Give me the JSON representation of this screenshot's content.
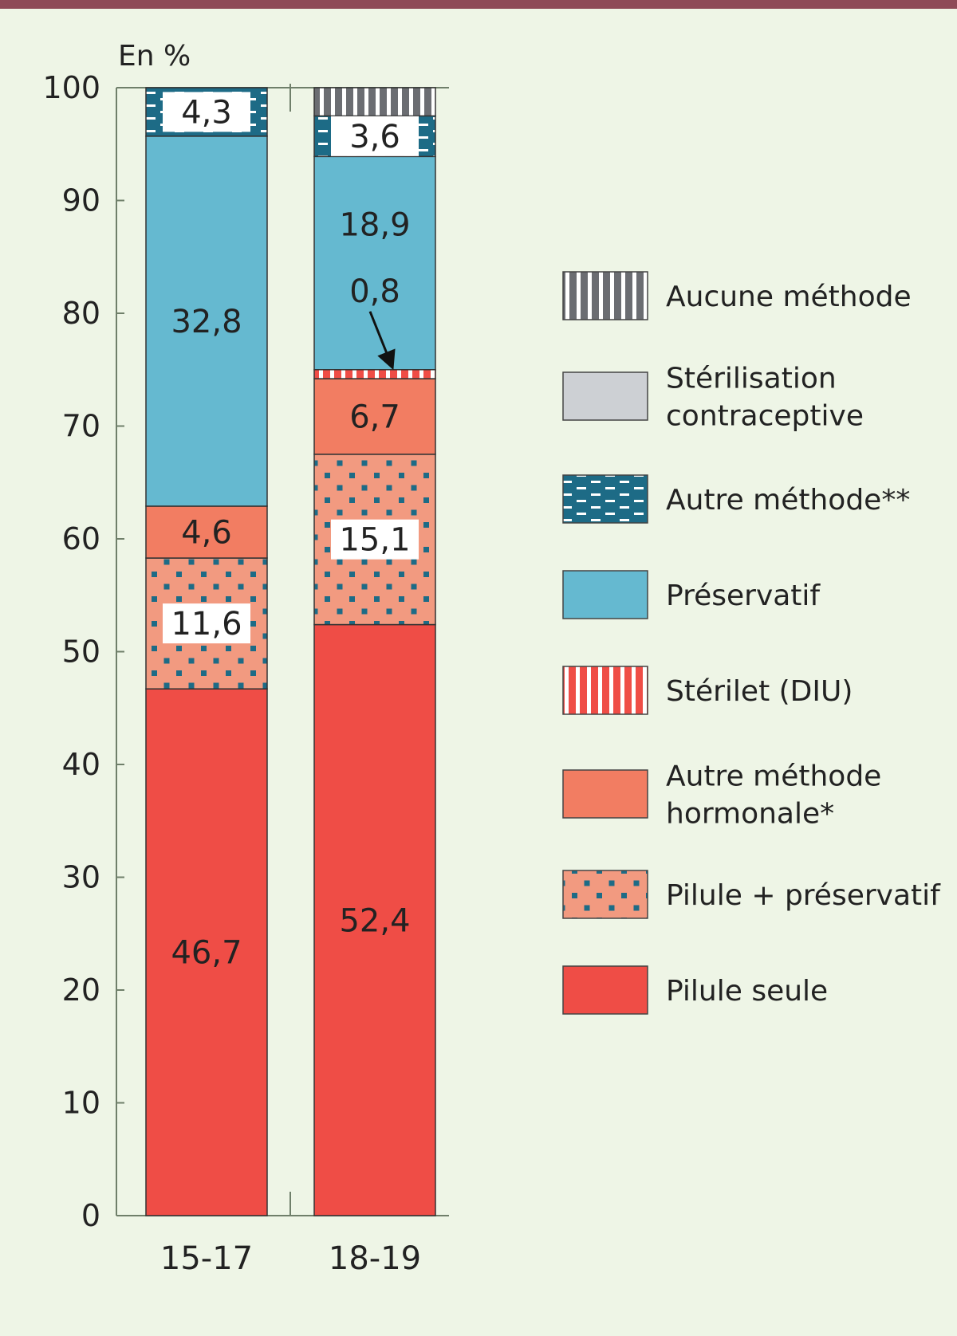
{
  "chart_data": {
    "type": "bar",
    "stacked": true,
    "unit_label": "En %",
    "ylim": [
      0,
      100
    ],
    "yticks": [
      0,
      10,
      20,
      30,
      40,
      50,
      60,
      70,
      80,
      90,
      100
    ],
    "grid": false,
    "legend_position": "right",
    "categories": [
      "15-17",
      "18-19"
    ],
    "series": [
      {
        "name": "Pilule seule",
        "values": [
          46.7,
          52.4
        ],
        "labels": [
          "46,7",
          "52,4"
        ],
        "color": "#ef4d46",
        "pattern": "solid"
      },
      {
        "name": "Pilule + préservatif",
        "values": [
          11.6,
          15.1
        ],
        "labels": [
          "11,6",
          "15,1"
        ],
        "color": "#f29a80",
        "pattern": "dots"
      },
      {
        "name": "Autre méthode hormonale*",
        "values": [
          4.6,
          6.7
        ],
        "labels": [
          "4,6",
          "6,7"
        ],
        "color": "#f27d62",
        "pattern": "solid"
      },
      {
        "name": "Stérilet (DIU)",
        "values": [
          0,
          0.8
        ],
        "labels": [
          "",
          "0,8"
        ],
        "color": "#ef4d46",
        "pattern": "vstripes-white"
      },
      {
        "name": "Préservatif",
        "values": [
          32.8,
          18.9
        ],
        "labels": [
          "32,8",
          "18,9"
        ],
        "color": "#65b9d0",
        "pattern": "solid"
      },
      {
        "name": "Autre méthode**",
        "values": [
          4.3,
          3.6
        ],
        "labels": [
          "4,3",
          "3,6"
        ],
        "color": "#1d6b86",
        "pattern": "dashes"
      },
      {
        "name": "Stérilisation contraceptive",
        "values": [
          0,
          0
        ],
        "labels": [
          "",
          ""
        ],
        "color": "#cdd0d4",
        "pattern": "solid"
      },
      {
        "name": "Aucune méthode",
        "values": [
          0,
          2.5
        ],
        "labels": [
          "",
          ""
        ],
        "color": "#6b6d72",
        "pattern": "vstripes-white"
      }
    ]
  },
  "legend": [
    {
      "lines": [
        "Aucune méthode"
      ],
      "series": 7
    },
    {
      "lines": [
        "Stérilisation",
        "contraceptive"
      ],
      "series": 6
    },
    {
      "lines": [
        "Autre méthode**"
      ],
      "series": 5
    },
    {
      "lines": [
        "Préservatif"
      ],
      "series": 4
    },
    {
      "lines": [
        "Stérilet (DIU)"
      ],
      "series": 3
    },
    {
      "lines": [
        "Autre méthode",
        "hormonale*"
      ],
      "series": 2
    },
    {
      "lines": [
        "Pilule + préservatif"
      ],
      "series": 1
    },
    {
      "lines": [
        "Pilule seule"
      ],
      "series": 0
    }
  ]
}
